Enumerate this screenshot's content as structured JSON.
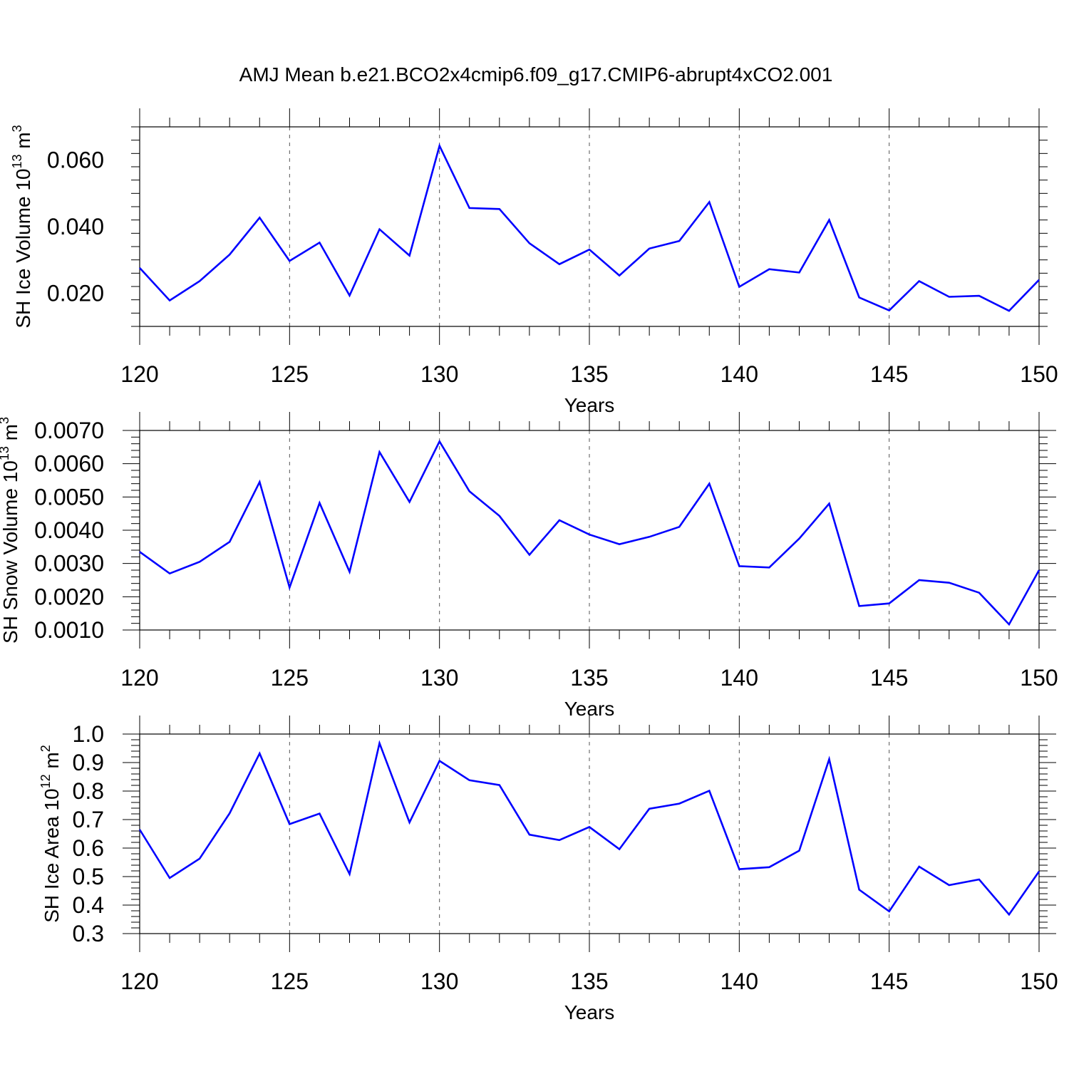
{
  "title": "AMJ Mean b.e21.BCO2x4cmip6.f09_g17.CMIP6-abrupt4xCO2.001",
  "colors": {
    "line": "#0000ff",
    "frame": "#000000",
    "grid": "#555555"
  },
  "chart_data": [
    {
      "type": "line",
      "ylabel_main": "SH Ice Volume 10",
      "ylabel_exp": "13",
      "ylabel_unit": " m",
      "ylabel_unit_exp": "3",
      "xlabel": "Years",
      "xlim": [
        120,
        150
      ],
      "ylim": [
        0.01,
        0.07
      ],
      "grid": "vertical dashed at 125, 130, 135, 140, 145",
      "x_ticks": [
        120,
        125,
        130,
        135,
        140,
        145,
        150
      ],
      "x_tick_labels": [
        "120",
        "125",
        "130",
        "135",
        "140",
        "145",
        "150"
      ],
      "y_ticks": [
        0.02,
        0.04,
        0.06
      ],
      "y_tick_labels": [
        "0.020",
        "0.040",
        "0.060"
      ],
      "x": [
        120,
        121,
        122,
        123,
        124,
        125,
        126,
        127,
        128,
        129,
        130,
        131,
        132,
        133,
        134,
        135,
        136,
        137,
        138,
        139,
        140,
        141,
        142,
        143,
        144,
        145,
        146,
        147,
        148,
        149,
        150
      ],
      "values": [
        0.0276,
        0.0178,
        0.0236,
        0.0316,
        0.0427,
        0.0297,
        0.0352,
        0.0193,
        0.0392,
        0.0313,
        0.0643,
        0.0456,
        0.0453,
        0.035,
        0.0287,
        0.0331,
        0.0253,
        0.0334,
        0.0357,
        0.0474,
        0.0219,
        0.0272,
        0.0262,
        0.042,
        0.0187,
        0.0148,
        0.0236,
        0.0189,
        0.0192,
        0.0147,
        0.024
      ]
    },
    {
      "type": "line",
      "ylabel_main": "SH Snow Volume 10",
      "ylabel_exp": "13",
      "ylabel_unit": " m",
      "ylabel_unit_exp": "3",
      "xlabel": "Years",
      "xlim": [
        120,
        150
      ],
      "ylim": [
        0.001,
        0.007
      ],
      "grid": "vertical dashed at 125, 130, 135, 140, 145",
      "x_ticks": [
        120,
        125,
        130,
        135,
        140,
        145,
        150
      ],
      "x_tick_labels": [
        "120",
        "125",
        "130",
        "135",
        "140",
        "145",
        "150"
      ],
      "y_ticks": [
        0.001,
        0.002,
        0.003,
        0.004,
        0.005,
        0.006,
        0.007
      ],
      "y_tick_labels": [
        "0.0010",
        "0.0020",
        "0.0030",
        "0.0040",
        "0.0050",
        "0.0060",
        "0.0070"
      ],
      "x": [
        120,
        121,
        122,
        123,
        124,
        125,
        126,
        127,
        128,
        129,
        130,
        131,
        132,
        133,
        134,
        135,
        136,
        137,
        138,
        139,
        140,
        141,
        142,
        143,
        144,
        145,
        146,
        147,
        148,
        149,
        150
      ],
      "values": [
        0.00335,
        0.0027,
        0.00305,
        0.00365,
        0.00545,
        0.00228,
        0.00482,
        0.00275,
        0.00635,
        0.00485,
        0.00667,
        0.00517,
        0.00443,
        0.00326,
        0.0043,
        0.00387,
        0.00358,
        0.0038,
        0.0041,
        0.0054,
        0.00292,
        0.00288,
        0.00375,
        0.0048,
        0.00172,
        0.0018,
        0.0025,
        0.00242,
        0.00212,
        0.00117,
        0.0028
      ]
    },
    {
      "type": "line",
      "ylabel_main": "SH Ice Area 10",
      "ylabel_exp": "12",
      "ylabel_unit": " m",
      "ylabel_unit_exp": "2",
      "xlabel": "Years",
      "xlim": [
        120,
        150
      ],
      "ylim": [
        0.3,
        1.0
      ],
      "grid": "vertical dashed at 125, 130, 135, 140, 145",
      "x_ticks": [
        120,
        125,
        130,
        135,
        140,
        145,
        150
      ],
      "x_tick_labels": [
        "120",
        "125",
        "130",
        "135",
        "140",
        "145",
        "150"
      ],
      "y_ticks": [
        0.3,
        0.4,
        0.5,
        0.6,
        0.7,
        0.8,
        0.9,
        1.0
      ],
      "y_tick_labels": [
        "0.3",
        "0.4",
        "0.5",
        "0.6",
        "0.7",
        "0.8",
        "0.9",
        "1.0"
      ],
      "x": [
        120,
        121,
        122,
        123,
        124,
        125,
        126,
        127,
        128,
        129,
        130,
        131,
        132,
        133,
        134,
        135,
        136,
        137,
        138,
        139,
        140,
        141,
        142,
        143,
        144,
        145,
        146,
        147,
        148,
        149,
        150
      ],
      "values": [
        0.665,
        0.495,
        0.563,
        0.722,
        0.932,
        0.684,
        0.721,
        0.509,
        0.968,
        0.69,
        0.906,
        0.838,
        0.821,
        0.647,
        0.628,
        0.674,
        0.596,
        0.738,
        0.756,
        0.801,
        0.526,
        0.533,
        0.591,
        0.912,
        0.454,
        0.378,
        0.535,
        0.47,
        0.49,
        0.367,
        0.518
      ]
    }
  ]
}
